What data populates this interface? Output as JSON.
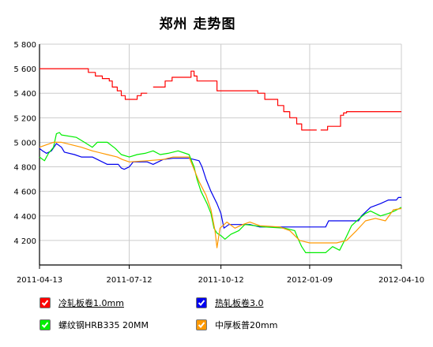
{
  "chart_data": {
    "type": "line",
    "title": "郑州 走势图",
    "xlabel": "",
    "ylabel": "",
    "ylim": [
      4000,
      5800
    ],
    "yticks": [
      4200,
      4400,
      4600,
      4800,
      5000,
      5200,
      5400,
      5600,
      5800
    ],
    "ytick_labels": [
      "4 200",
      "4 400",
      "4 600",
      "4 800",
      "5 000",
      "5 200",
      "5 400",
      "5 600",
      "5 800"
    ],
    "xlim": [
      "2011-04-13",
      "2012-04-10"
    ],
    "xticks": [
      "2011-04-13",
      "2011-07-12",
      "2011-10-12",
      "2012-01-09",
      "2012-04-10"
    ],
    "grid": true,
    "legend_position": "bottom",
    "series": [
      {
        "name": "冷轧板卷1.0mm",
        "color": "#ff0000",
        "points": [
          [
            "2011-04-13",
            5600
          ],
          [
            "2011-06-01",
            5600
          ],
          [
            "2011-06-01",
            5570
          ],
          [
            "2011-06-08",
            5570
          ],
          [
            "2011-06-08",
            5540
          ],
          [
            "2011-06-15",
            5540
          ],
          [
            "2011-06-15",
            5520
          ],
          [
            "2011-06-22",
            5520
          ],
          [
            "2011-06-22",
            5500
          ],
          [
            "2011-06-25",
            5500
          ],
          [
            "2011-06-25",
            5450
          ],
          [
            "2011-06-30",
            5450
          ],
          [
            "2011-06-30",
            5420
          ],
          [
            "2011-07-04",
            5420
          ],
          [
            "2011-07-04",
            5380
          ],
          [
            "2011-07-08",
            5380
          ],
          [
            "2011-07-08",
            5350
          ],
          [
            "2011-07-20",
            5350
          ],
          [
            "2011-07-20",
            5380
          ],
          [
            "2011-07-24",
            5380
          ],
          [
            "2011-07-24",
            5400
          ],
          [
            "2011-07-30",
            5400
          ],
          [
            "2011-08-05",
            5450
          ],
          [
            "2011-08-17",
            5450
          ],
          [
            "2011-08-17",
            5500
          ],
          [
            "2011-08-24",
            5500
          ],
          [
            "2011-08-24",
            5530
          ],
          [
            "2011-09-12",
            5530
          ],
          [
            "2011-09-12",
            5580
          ],
          [
            "2011-09-15",
            5580
          ],
          [
            "2011-09-15",
            5540
          ],
          [
            "2011-09-18",
            5540
          ],
          [
            "2011-09-18",
            5500
          ],
          [
            "2011-10-08",
            5500
          ],
          [
            "2011-10-08",
            5420
          ],
          [
            "2011-11-18",
            5420
          ],
          [
            "2011-11-18",
            5400
          ],
          [
            "2011-11-25",
            5400
          ],
          [
            "2011-11-25",
            5350
          ],
          [
            "2011-12-08",
            5350
          ],
          [
            "2011-12-08",
            5300
          ],
          [
            "2011-12-14",
            5300
          ],
          [
            "2011-12-14",
            5250
          ],
          [
            "2011-12-20",
            5250
          ],
          [
            "2011-12-20",
            5200
          ],
          [
            "2011-12-27",
            5200
          ],
          [
            "2011-12-27",
            5150
          ],
          [
            "2012-01-01",
            5150
          ],
          [
            "2012-01-01",
            5100
          ],
          [
            "2012-01-16",
            5100
          ],
          [
            "2012-01-20",
            5100
          ],
          [
            "2012-01-27",
            5100
          ],
          [
            "2012-01-27",
            5130
          ],
          [
            "2012-02-09",
            5130
          ],
          [
            "2012-02-09",
            5220
          ],
          [
            "2012-02-12",
            5220
          ],
          [
            "2012-02-12",
            5240
          ],
          [
            "2012-02-15",
            5240
          ],
          [
            "2012-02-15",
            5250
          ],
          [
            "2012-04-10",
            5250
          ]
        ]
      },
      {
        "name": "热轧板卷3.0",
        "color": "#0000ee",
        "points": [
          [
            "2011-04-13",
            4950
          ],
          [
            "2011-04-16",
            4930
          ],
          [
            "2011-04-20",
            4910
          ],
          [
            "2011-04-25",
            4930
          ],
          [
            "2011-04-30",
            4990
          ],
          [
            "2011-05-05",
            4960
          ],
          [
            "2011-05-08",
            4920
          ],
          [
            "2011-05-18",
            4900
          ],
          [
            "2011-05-25",
            4880
          ],
          [
            "2011-06-05",
            4880
          ],
          [
            "2011-06-10",
            4860
          ],
          [
            "2011-06-20",
            4820
          ],
          [
            "2011-07-01",
            4820
          ],
          [
            "2011-07-04",
            4790
          ],
          [
            "2011-07-07",
            4780
          ],
          [
            "2011-07-12",
            4800
          ],
          [
            "2011-07-16",
            4840
          ],
          [
            "2011-07-30",
            4840
          ],
          [
            "2011-08-05",
            4820
          ],
          [
            "2011-08-15",
            4860
          ],
          [
            "2011-08-25",
            4870
          ],
          [
            "2011-09-10",
            4870
          ],
          [
            "2011-09-20",
            4850
          ],
          [
            "2011-09-23",
            4800
          ],
          [
            "2011-09-27",
            4700
          ],
          [
            "2011-10-02",
            4600
          ],
          [
            "2011-10-08",
            4500
          ],
          [
            "2011-10-12",
            4420
          ],
          [
            "2011-10-15",
            4300
          ],
          [
            "2011-10-20",
            4330
          ],
          [
            "2011-11-10",
            4330
          ],
          [
            "2011-11-20",
            4310
          ],
          [
            "2012-01-25",
            4310
          ],
          [
            "2012-01-28",
            4360
          ],
          [
            "2012-02-27",
            4360
          ],
          [
            "2012-03-01",
            4400
          ],
          [
            "2012-03-10",
            4470
          ],
          [
            "2012-03-20",
            4500
          ],
          [
            "2012-03-28",
            4530
          ],
          [
            "2012-04-05",
            4530
          ],
          [
            "2012-04-07",
            4550
          ],
          [
            "2012-04-10",
            4550
          ]
        ]
      },
      {
        "name": "螺纹钢HRB335 20MM",
        "color": "#00ee00",
        "points": [
          [
            "2011-04-13",
            4880
          ],
          [
            "2011-04-18",
            4850
          ],
          [
            "2011-04-22",
            4910
          ],
          [
            "2011-04-27",
            4960
          ],
          [
            "2011-04-30",
            5070
          ],
          [
            "2011-05-03",
            5080
          ],
          [
            "2011-05-05",
            5060
          ],
          [
            "2011-05-20",
            5040
          ],
          [
            "2011-05-28",
            5000
          ],
          [
            "2011-06-05",
            4960
          ],
          [
            "2011-06-10",
            5000
          ],
          [
            "2011-06-20",
            5000
          ],
          [
            "2011-06-28",
            4950
          ],
          [
            "2011-07-04",
            4900
          ],
          [
            "2011-07-12",
            4880
          ],
          [
            "2011-07-20",
            4900
          ],
          [
            "2011-07-28",
            4910
          ],
          [
            "2011-08-05",
            4930
          ],
          [
            "2011-08-12",
            4900
          ],
          [
            "2011-08-20",
            4910
          ],
          [
            "2011-08-30",
            4930
          ],
          [
            "2011-09-10",
            4900
          ],
          [
            "2011-09-15",
            4800
          ],
          [
            "2011-09-18",
            4700
          ],
          [
            "2011-09-22",
            4600
          ],
          [
            "2011-09-28",
            4500
          ],
          [
            "2011-10-02",
            4420
          ],
          [
            "2011-10-05",
            4300
          ],
          [
            "2011-10-08",
            4260
          ],
          [
            "2011-10-12",
            4240
          ],
          [
            "2011-10-16",
            4210
          ],
          [
            "2011-10-22",
            4250
          ],
          [
            "2011-10-30",
            4280
          ],
          [
            "2011-11-05",
            4330
          ],
          [
            "2011-11-15",
            4320
          ],
          [
            "2011-11-25",
            4310
          ],
          [
            "2011-12-15",
            4300
          ],
          [
            "2011-12-25",
            4280
          ],
          [
            "2011-12-28",
            4220
          ],
          [
            "2012-01-01",
            4150
          ],
          [
            "2012-01-05",
            4100
          ],
          [
            "2012-01-25",
            4100
          ],
          [
            "2012-02-01",
            4150
          ],
          [
            "2012-02-08",
            4120
          ],
          [
            "2012-02-13",
            4200
          ],
          [
            "2012-02-20",
            4320
          ],
          [
            "2012-02-28",
            4380
          ],
          [
            "2012-03-05",
            4420
          ],
          [
            "2012-03-10",
            4440
          ],
          [
            "2012-03-20",
            4400
          ],
          [
            "2012-03-28",
            4420
          ],
          [
            "2012-04-03",
            4440
          ],
          [
            "2012-04-10",
            4470
          ]
        ]
      },
      {
        "name": "中厚板普20mm",
        "color": "#ff9900",
        "points": [
          [
            "2011-04-13",
            4960
          ],
          [
            "2011-04-20",
            4980
          ],
          [
            "2011-04-27",
            5000
          ],
          [
            "2011-05-05",
            5000
          ],
          [
            "2011-05-15",
            4980
          ],
          [
            "2011-05-25",
            4960
          ],
          [
            "2011-06-05",
            4930
          ],
          [
            "2011-06-20",
            4900
          ],
          [
            "2011-06-30",
            4880
          ],
          [
            "2011-07-05",
            4860
          ],
          [
            "2011-07-12",
            4840
          ],
          [
            "2011-07-30",
            4850
          ],
          [
            "2011-08-15",
            4860
          ],
          [
            "2011-08-25",
            4880
          ],
          [
            "2011-09-10",
            4880
          ],
          [
            "2011-09-15",
            4780
          ],
          [
            "2011-09-20",
            4680
          ],
          [
            "2011-09-27",
            4570
          ],
          [
            "2011-10-02",
            4450
          ],
          [
            "2011-10-06",
            4280
          ],
          [
            "2011-10-08",
            4140
          ],
          [
            "2011-10-11",
            4300
          ],
          [
            "2011-10-18",
            4350
          ],
          [
            "2011-10-26",
            4300
          ],
          [
            "2011-11-03",
            4330
          ],
          [
            "2011-11-10",
            4350
          ],
          [
            "2011-11-20",
            4320
          ],
          [
            "2011-12-10",
            4310
          ],
          [
            "2011-12-20",
            4280
          ],
          [
            "2011-12-30",
            4200
          ],
          [
            "2012-01-09",
            4180
          ],
          [
            "2012-02-05",
            4180
          ],
          [
            "2012-02-15",
            4200
          ],
          [
            "2012-02-25",
            4280
          ],
          [
            "2012-03-05",
            4360
          ],
          [
            "2012-03-15",
            4380
          ],
          [
            "2012-03-25",
            4360
          ],
          [
            "2012-04-02",
            4450
          ],
          [
            "2012-04-10",
            4460
          ]
        ]
      }
    ]
  }
}
